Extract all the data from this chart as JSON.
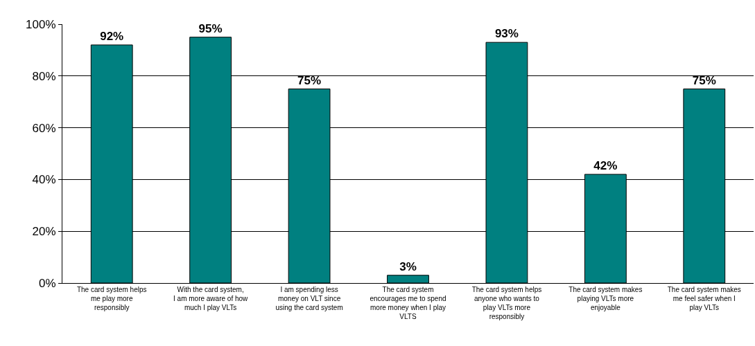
{
  "chart_data": {
    "type": "bar",
    "categories": [
      "The card system helps me play more responsibly",
      "With the card system, I am more aware of how much I play VLTs",
      "I am spending less money on VLT since using the card system",
      "The card system encourages me to spend more money when I play VLTS",
      "The card system helps anyone who wants to play VLTs more responsibly",
      "The card system makes playing VLTs more enjoyable",
      "The card system makes me feel safer when I play VLTs"
    ],
    "values": [
      92,
      95,
      75,
      3,
      93,
      42,
      75
    ],
    "value_labels": [
      "92%",
      "95%",
      "75%",
      "3%",
      "93%",
      "42%",
      "75%"
    ],
    "color": "#008080",
    "ylim": [
      0,
      100
    ],
    "yticks": [
      {
        "value": 0,
        "label": "0%"
      },
      {
        "value": 20,
        "label": "20%"
      },
      {
        "value": 40,
        "label": "40%"
      },
      {
        "value": 60,
        "label": "60%"
      },
      {
        "value": 80,
        "label": "80%"
      },
      {
        "value": 100,
        "label": "100%"
      }
    ],
    "grid": "y"
  }
}
